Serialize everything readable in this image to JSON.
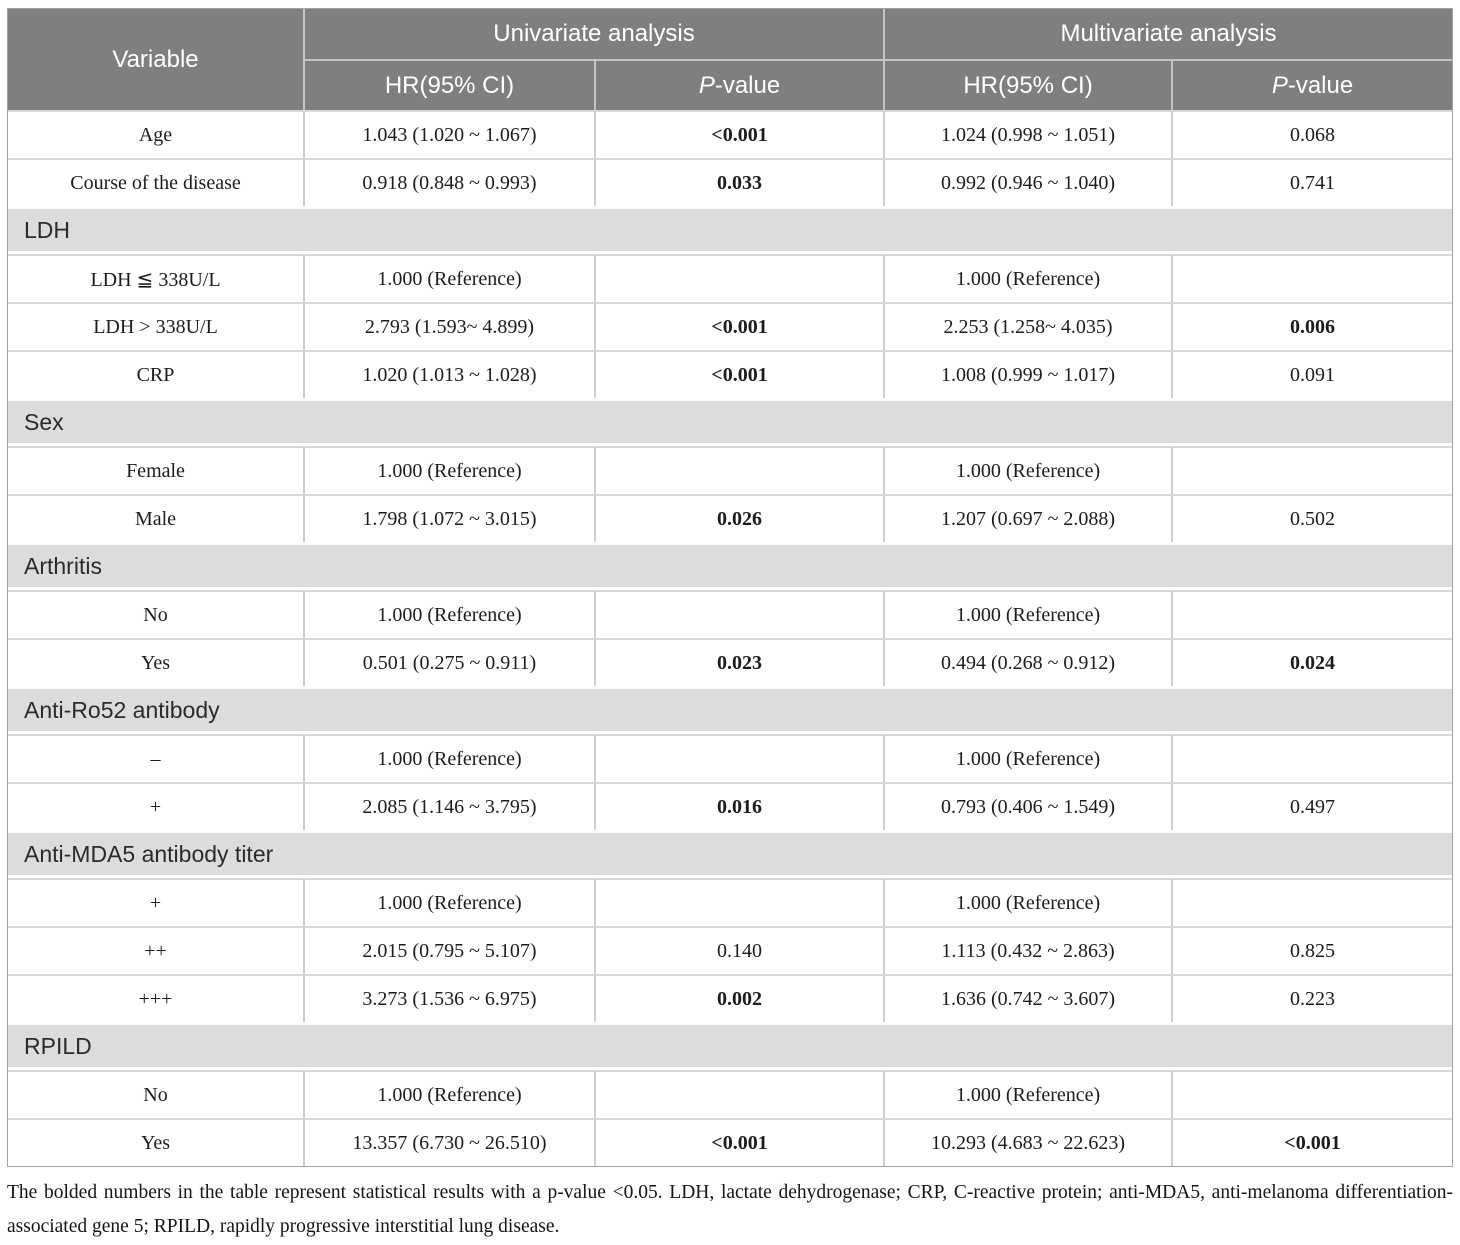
{
  "colors": {
    "header_bg": "#7f7f7f",
    "header_text": "#ffffff",
    "section_bg": "#dcdcdc",
    "row_bg": "#ffffff",
    "border_light": "#cfcfcf",
    "body_text": "#1c1c1c"
  },
  "table": {
    "header": {
      "variable": "Variable",
      "univariate": "Univariate analysis",
      "multivariate": "Multivariate analysis",
      "hr_label": "HR(95% CI)",
      "p_italic": "P",
      "p_rest": "-value"
    },
    "rows": [
      {
        "type": "data",
        "label": "Age",
        "uni_hr": "1.043 (1.020 ~ 1.067)",
        "uni_p": "<0.001",
        "uni_p_bold": true,
        "multi_hr": "1.024 (0.998 ~ 1.051)",
        "multi_p": "0.068",
        "multi_p_bold": false
      },
      {
        "type": "data",
        "label": "Course of the disease",
        "uni_hr": "0.918 (0.848 ~ 0.993)",
        "uni_p": "0.033",
        "uni_p_bold": true,
        "multi_hr": "0.992 (0.946 ~ 1.040)",
        "multi_p": "0.741",
        "multi_p_bold": false
      },
      {
        "type": "section",
        "label": "LDH"
      },
      {
        "type": "data",
        "label": "LDH ≦ 338U/L",
        "uni_hr": "1.000 (Reference)",
        "uni_p": "",
        "uni_p_bold": false,
        "multi_hr": "1.000 (Reference)",
        "multi_p": "",
        "multi_p_bold": false
      },
      {
        "type": "data",
        "label": "LDH > 338U/L",
        "uni_hr": "2.793 (1.593~ 4.899)",
        "uni_p": "<0.001",
        "uni_p_bold": true,
        "multi_hr": "2.253 (1.258~ 4.035)",
        "multi_p": "0.006",
        "multi_p_bold": true
      },
      {
        "type": "data",
        "label": "CRP",
        "uni_hr": "1.020 (1.013 ~ 1.028)",
        "uni_p": "<0.001",
        "uni_p_bold": true,
        "multi_hr": "1.008 (0.999 ~ 1.017)",
        "multi_p": "0.091",
        "multi_p_bold": false
      },
      {
        "type": "section",
        "label": "Sex"
      },
      {
        "type": "data",
        "label": "Female",
        "uni_hr": "1.000 (Reference)",
        "uni_p": "",
        "uni_p_bold": false,
        "multi_hr": "1.000 (Reference)",
        "multi_p": "",
        "multi_p_bold": false
      },
      {
        "type": "data",
        "label": "Male",
        "uni_hr": "1.798 (1.072 ~ 3.015)",
        "uni_p": "0.026",
        "uni_p_bold": true,
        "multi_hr": "1.207 (0.697 ~ 2.088)",
        "multi_p": "0.502",
        "multi_p_bold": false
      },
      {
        "type": "section",
        "label": "Arthritis"
      },
      {
        "type": "data",
        "label": "No",
        "uni_hr": "1.000 (Reference)",
        "uni_p": "",
        "uni_p_bold": false,
        "multi_hr": "1.000 (Reference)",
        "multi_p": "",
        "multi_p_bold": false
      },
      {
        "type": "data",
        "label": "Yes",
        "uni_hr": "0.501 (0.275 ~ 0.911)",
        "uni_p": "0.023",
        "uni_p_bold": true,
        "multi_hr": "0.494 (0.268 ~ 0.912)",
        "multi_p": "0.024",
        "multi_p_bold": true
      },
      {
        "type": "section",
        "label": "Anti-Ro52 antibody"
      },
      {
        "type": "data",
        "label": "–",
        "uni_hr": "1.000 (Reference)",
        "uni_p": "",
        "uni_p_bold": false,
        "multi_hr": "1.000 (Reference)",
        "multi_p": "",
        "multi_p_bold": false
      },
      {
        "type": "data",
        "label": "+",
        "uni_hr": "2.085 (1.146 ~ 3.795)",
        "uni_p": "0.016",
        "uni_p_bold": true,
        "multi_hr": "0.793 (0.406 ~ 1.549)",
        "multi_p": "0.497",
        "multi_p_bold": false
      },
      {
        "type": "section",
        "label": "Anti-MDA5 antibody titer"
      },
      {
        "type": "data",
        "label": "+",
        "uni_hr": "1.000 (Reference)",
        "uni_p": "",
        "uni_p_bold": false,
        "multi_hr": "1.000 (Reference)",
        "multi_p": "",
        "multi_p_bold": false
      },
      {
        "type": "data",
        "label": "++",
        "uni_hr": "2.015 (0.795 ~ 5.107)",
        "uni_p": "0.140",
        "uni_p_bold": false,
        "multi_hr": "1.113 (0.432 ~ 2.863)",
        "multi_p": "0.825",
        "multi_p_bold": false
      },
      {
        "type": "data",
        "label": "+++",
        "uni_hr": "3.273 (1.536 ~ 6.975)",
        "uni_p": "0.002",
        "uni_p_bold": true,
        "multi_hr": "1.636 (0.742 ~ 3.607)",
        "multi_p": "0.223",
        "multi_p_bold": false
      },
      {
        "type": "section",
        "label": "RPILD"
      },
      {
        "type": "data",
        "label": "No",
        "uni_hr": "1.000 (Reference)",
        "uni_p": "",
        "uni_p_bold": false,
        "multi_hr": "1.000 (Reference)",
        "multi_p": "",
        "multi_p_bold": false
      },
      {
        "type": "data",
        "label": "Yes",
        "uni_hr": "13.357 (6.730 ~ 26.510)",
        "uni_p": "<0.001",
        "uni_p_bold": true,
        "multi_hr": "10.293 (4.683 ~ 22.623)",
        "multi_p": "<0.001",
        "multi_p_bold": true
      }
    ],
    "footnote": "The bolded numbers in the table represent statistical results with a p-value <0.05. LDH, lactate dehydrogenase; CRP, C-reactive protein; anti-MDA5, anti-melanoma differentiation-associated gene 5; RPILD, rapidly progressive interstitial lung disease."
  }
}
